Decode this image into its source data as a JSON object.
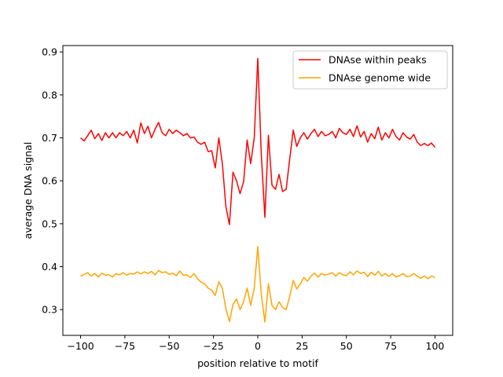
{
  "chart_data": {
    "type": "line",
    "title": "",
    "xlabel": "position relative to motif",
    "ylabel": "average DNA signal",
    "xlim": [
      -110,
      110
    ],
    "ylim": [
      0.24,
      0.915
    ],
    "xticks": [
      -100,
      -75,
      -50,
      -25,
      0,
      25,
      50,
      75,
      100
    ],
    "yticks": [
      0.3,
      0.4,
      0.5,
      0.6,
      0.7,
      0.8,
      0.9
    ],
    "xtick_labels": [
      "−100",
      "−75",
      "−50",
      "−25",
      "0",
      "25",
      "50",
      "75",
      "100"
    ],
    "ytick_labels": [
      "0.3",
      "0.4",
      "0.5",
      "0.6",
      "0.7",
      "0.8",
      "0.9"
    ],
    "grid": false,
    "legend_position": "top-right",
    "series": [
      {
        "name": "DNAse within peaks",
        "color": "#ff0000",
        "x": [
          -100,
          -98,
          -96,
          -94,
          -92,
          -90,
          -88,
          -86,
          -84,
          -82,
          -80,
          -78,
          -76,
          -74,
          -72,
          -70,
          -68,
          -66,
          -64,
          -62,
          -60,
          -58,
          -56,
          -54,
          -52,
          -50,
          -48,
          -46,
          -44,
          -42,
          -40,
          -38,
          -36,
          -34,
          -32,
          -30,
          -28,
          -26,
          -24,
          -22,
          -20,
          -18,
          -16,
          -14,
          -12,
          -10,
          -8,
          -6,
          -4,
          -2,
          0,
          2,
          4,
          6,
          8,
          10,
          12,
          14,
          16,
          18,
          20,
          22,
          24,
          26,
          28,
          30,
          32,
          34,
          36,
          38,
          40,
          42,
          44,
          46,
          48,
          50,
          52,
          54,
          56,
          58,
          60,
          62,
          64,
          66,
          68,
          70,
          72,
          74,
          76,
          78,
          80,
          82,
          84,
          86,
          88,
          90,
          92,
          94,
          96,
          98,
          100
        ],
        "y": [
          0.7,
          0.693,
          0.705,
          0.718,
          0.698,
          0.71,
          0.694,
          0.712,
          0.7,
          0.712,
          0.7,
          0.712,
          0.705,
          0.715,
          0.7,
          0.718,
          0.688,
          0.735,
          0.71,
          0.727,
          0.7,
          0.72,
          0.736,
          0.712,
          0.705,
          0.72,
          0.71,
          0.718,
          0.712,
          0.705,
          0.71,
          0.7,
          0.702,
          0.69,
          0.685,
          0.69,
          0.668,
          0.67,
          0.63,
          0.7,
          0.64,
          0.54,
          0.498,
          0.62,
          0.6,
          0.57,
          0.598,
          0.695,
          0.64,
          0.7,
          0.885,
          0.66,
          0.515,
          0.706,
          0.59,
          0.58,
          0.615,
          0.575,
          0.58,
          0.65,
          0.718,
          0.68,
          0.7,
          0.712,
          0.697,
          0.71,
          0.72,
          0.703,
          0.715,
          0.705,
          0.708,
          0.715,
          0.7,
          0.722,
          0.712,
          0.708,
          0.72,
          0.703,
          0.728,
          0.702,
          0.715,
          0.69,
          0.71,
          0.698,
          0.725,
          0.695,
          0.712,
          0.7,
          0.72,
          0.703,
          0.695,
          0.712,
          0.702,
          0.697,
          0.708,
          0.69,
          0.682,
          0.687,
          0.682,
          0.688,
          0.678
        ]
      },
      {
        "name": "DNAse genome wide",
        "color": "#ffa500",
        "x": [
          -100,
          -98,
          -96,
          -94,
          -92,
          -90,
          -88,
          -86,
          -84,
          -82,
          -80,
          -78,
          -76,
          -74,
          -72,
          -70,
          -68,
          -66,
          -64,
          -62,
          -60,
          -58,
          -56,
          -54,
          -52,
          -50,
          -48,
          -46,
          -44,
          -42,
          -40,
          -38,
          -36,
          -34,
          -32,
          -30,
          -28,
          -26,
          -24,
          -22,
          -20,
          -18,
          -16,
          -14,
          -12,
          -10,
          -8,
          -6,
          -4,
          -2,
          0,
          2,
          4,
          6,
          8,
          10,
          12,
          14,
          16,
          18,
          20,
          22,
          24,
          26,
          28,
          30,
          32,
          34,
          36,
          38,
          40,
          42,
          44,
          46,
          48,
          50,
          52,
          54,
          56,
          58,
          60,
          62,
          64,
          66,
          68,
          70,
          72,
          74,
          76,
          78,
          80,
          82,
          84,
          86,
          88,
          90,
          92,
          94,
          96,
          98,
          100
        ],
        "y": [
          0.378,
          0.382,
          0.386,
          0.378,
          0.384,
          0.376,
          0.385,
          0.38,
          0.381,
          0.376,
          0.384,
          0.381,
          0.386,
          0.38,
          0.384,
          0.383,
          0.388,
          0.383,
          0.388,
          0.384,
          0.389,
          0.381,
          0.391,
          0.386,
          0.388,
          0.382,
          0.385,
          0.379,
          0.39,
          0.38,
          0.381,
          0.375,
          0.384,
          0.372,
          0.364,
          0.36,
          0.35,
          0.345,
          0.333,
          0.365,
          0.35,
          0.302,
          0.272,
          0.312,
          0.325,
          0.3,
          0.318,
          0.35,
          0.31,
          0.35,
          0.447,
          0.335,
          0.271,
          0.36,
          0.31,
          0.3,
          0.318,
          0.305,
          0.3,
          0.33,
          0.368,
          0.348,
          0.36,
          0.375,
          0.366,
          0.378,
          0.385,
          0.376,
          0.384,
          0.38,
          0.383,
          0.386,
          0.378,
          0.386,
          0.381,
          0.379,
          0.388,
          0.381,
          0.39,
          0.384,
          0.387,
          0.377,
          0.387,
          0.38,
          0.389,
          0.378,
          0.384,
          0.377,
          0.384,
          0.376,
          0.379,
          0.384,
          0.377,
          0.378,
          0.384,
          0.378,
          0.373,
          0.378,
          0.372,
          0.378,
          0.375
        ]
      }
    ]
  }
}
